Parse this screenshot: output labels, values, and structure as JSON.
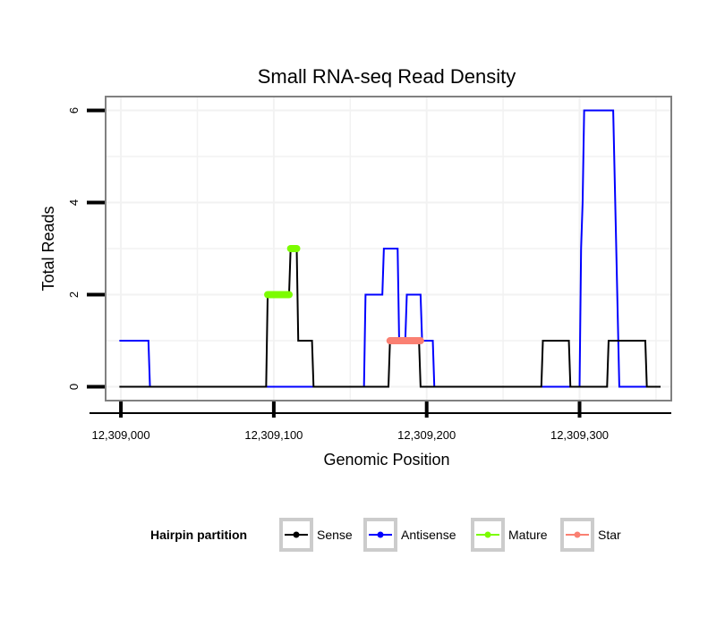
{
  "chart_data": {
    "type": "line",
    "title": "Small RNA-seq Read Density",
    "xlabel": "Genomic Position",
    "ylabel": "Total Reads",
    "xlim": [
      12308990,
      12309360
    ],
    "ylim": [
      -0.3,
      6.3
    ],
    "xticks": [
      12309000,
      12309100,
      12309200,
      12309300
    ],
    "xtick_labels": [
      "12,309,000",
      "12,309,100",
      "12,309,200",
      "12,309,300"
    ],
    "yticks": [
      0,
      2,
      4,
      6
    ],
    "ytick_labels": [
      "0",
      "2",
      "4",
      "6"
    ],
    "grid": true,
    "legend_position": "bottom",
    "series": [
      {
        "name": "Antisense",
        "color": "#0000ff",
        "kind": "step",
        "x": [
          12308999,
          12309018,
          12309019,
          12309159,
          12309160,
          12309171,
          12309172,
          12309181,
          12309182,
          12309186,
          12309187,
          12309196,
          12309197,
          12309204,
          12309205,
          12309300,
          12309301,
          12309302,
          12309303,
          12309322,
          12309324,
          12309326,
          12309345
        ],
        "y": [
          1,
          1,
          0,
          0,
          2,
          2,
          3,
          3,
          1,
          1,
          2,
          2,
          1,
          1,
          0,
          0,
          3,
          4,
          6,
          6,
          3,
          0,
          0
        ]
      },
      {
        "name": "Sense",
        "color": "#000000",
        "kind": "step",
        "x": [
          12308999,
          12309095,
          12309096,
          12309110,
          12309111,
          12309115,
          12309116,
          12309125,
          12309126,
          12309175,
          12309176,
          12309195,
          12309196,
          12309275,
          12309276,
          12309293,
          12309294,
          12309318,
          12309319,
          12309343,
          12309344,
          12309353
        ],
        "y": [
          0,
          0,
          2,
          2,
          3,
          3,
          1,
          1,
          0,
          0,
          1,
          1,
          0,
          0,
          1,
          1,
          0,
          0,
          1,
          1,
          0,
          0
        ]
      },
      {
        "name": "Mature",
        "color": "#7cfc00",
        "kind": "segment",
        "segments": [
          {
            "x_start": 12309096,
            "x_end": 12309110,
            "y": 2
          },
          {
            "x_start": 12309111,
            "x_end": 12309115,
            "y": 3
          }
        ]
      },
      {
        "name": "Star",
        "color": "#fa8072",
        "kind": "segment",
        "segments": [
          {
            "x_start": 12309176,
            "x_end": 12309196,
            "y": 1
          }
        ]
      }
    ],
    "legend": {
      "title": "Hairpin partition",
      "entries": [
        {
          "label": "Sense",
          "color": "#000000"
        },
        {
          "label": "Antisense",
          "color": "#0000ff"
        },
        {
          "label": "Mature",
          "color": "#7cfc00"
        },
        {
          "label": "Star",
          "color": "#fa8072"
        }
      ]
    }
  }
}
